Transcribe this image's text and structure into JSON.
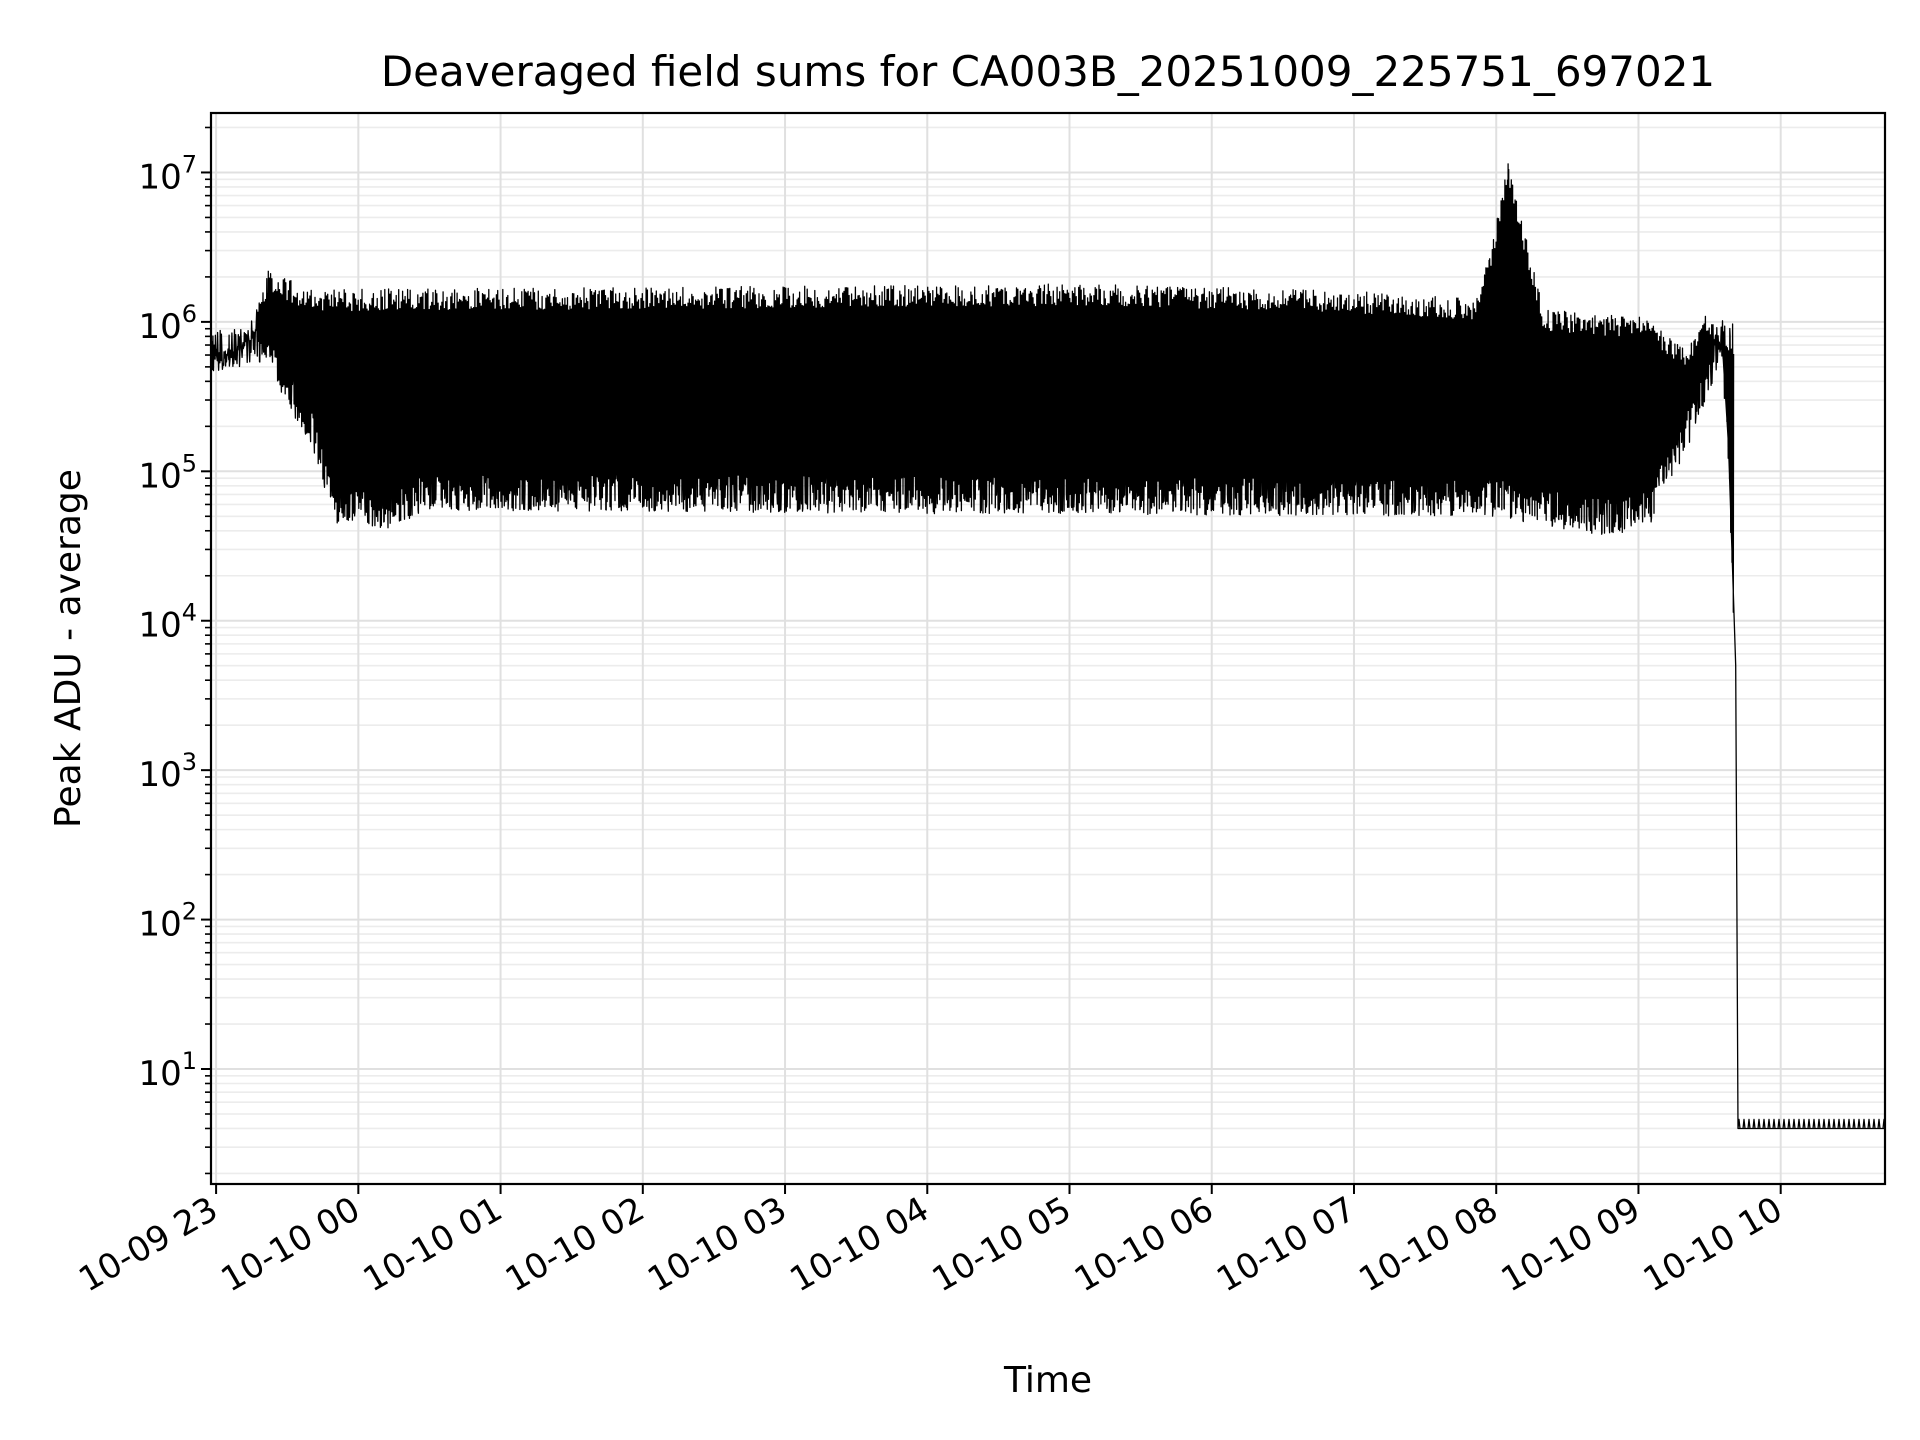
{
  "chart_data": {
    "type": "line",
    "title": "Deaveraged field sums for CA003B_20251009_225751_697021",
    "xlabel": "Time",
    "ylabel": "Peak ADU - average",
    "yscale": "log",
    "ylim": [
      1.7,
      25000000
    ],
    "xlim": [
      "2025-10-09 22:57:51",
      "2025-10-10 10:44:00"
    ],
    "grid": true,
    "x_ticks": [
      {
        "t": "2025-10-09 23:00",
        "label": "10-09 23"
      },
      {
        "t": "2025-10-10 00:00",
        "label": "10-10 00"
      },
      {
        "t": "2025-10-10 01:00",
        "label": "10-10 01"
      },
      {
        "t": "2025-10-10 02:00",
        "label": "10-10 02"
      },
      {
        "t": "2025-10-10 03:00",
        "label": "10-10 03"
      },
      {
        "t": "2025-10-10 04:00",
        "label": "10-10 04"
      },
      {
        "t": "2025-10-10 05:00",
        "label": "10-10 05"
      },
      {
        "t": "2025-10-10 06:00",
        "label": "10-10 06"
      },
      {
        "t": "2025-10-10 07:00",
        "label": "10-10 07"
      },
      {
        "t": "2025-10-10 08:00",
        "label": "10-10 08"
      },
      {
        "t": "2025-10-10 09:00",
        "label": "10-10 09"
      },
      {
        "t": "2025-10-10 10:00",
        "label": "10-10 10"
      }
    ],
    "y_ticks": [
      {
        "value": 10,
        "base": "10",
        "exp": "1"
      },
      {
        "value": 100,
        "base": "10",
        "exp": "2"
      },
      {
        "value": 1000,
        "base": "10",
        "exp": "3"
      },
      {
        "value": 10000,
        "base": "10",
        "exp": "4"
      },
      {
        "value": 100000,
        "base": "10",
        "exp": "5"
      },
      {
        "value": 1000000,
        "base": "10",
        "exp": "6"
      },
      {
        "value": 10000000,
        "base": "10",
        "exp": "7"
      }
    ],
    "series": [
      {
        "color": "#000000",
        "upper_envelope": [
          {
            "t": "2025-10-09 22:57:51",
            "v": 600000
          },
          {
            "t": "2025-10-09 23:08",
            "v": 700000
          },
          {
            "t": "2025-10-09 23:15",
            "v": 1050000
          },
          {
            "t": "2025-10-09 23:22",
            "v": 2200000
          },
          {
            "t": "2025-10-09 23:40",
            "v": 1650000
          },
          {
            "t": "2025-10-10 02:00",
            "v": 1700000
          },
          {
            "t": "2025-10-10 05:10",
            "v": 1800000
          },
          {
            "t": "2025-10-10 07:00",
            "v": 1600000
          },
          {
            "t": "2025-10-10 07:50",
            "v": 1450000
          },
          {
            "t": "2025-10-10 07:57",
            "v": 2600000
          },
          {
            "t": "2025-10-10 08:05",
            "v": 11500000
          },
          {
            "t": "2025-10-10 08:20",
            "v": 1200000
          },
          {
            "t": "2025-10-10 09:00",
            "v": 1100000
          },
          {
            "t": "2025-10-10 09:20",
            "v": 700000
          },
          {
            "t": "2025-10-10 09:29",
            "v": 1150000
          },
          {
            "t": "2025-10-10 09:35",
            "v": 900000
          },
          {
            "t": "2025-10-10 09:38",
            "v": 150000
          },
          {
            "t": "2025-10-10 09:41",
            "v": 5000
          },
          {
            "t": "2025-10-10 09:42",
            "v": 4
          },
          {
            "t": "2025-10-10 10:44",
            "v": 4
          }
        ],
        "lower_envelope": [
          {
            "t": "2025-10-09 22:57:51",
            "v": 500000
          },
          {
            "t": "2025-10-09 23:20",
            "v": 500000
          },
          {
            "t": "2025-10-09 23:40",
            "v": 150000
          },
          {
            "t": "2025-10-09 23:50",
            "v": 45000
          },
          {
            "t": "2025-10-10 00:10",
            "v": 40000
          },
          {
            "t": "2025-10-10 00:30",
            "v": 55000
          },
          {
            "t": "2025-10-10 04:00",
            "v": 52000
          },
          {
            "t": "2025-10-10 07:30",
            "v": 50000
          },
          {
            "t": "2025-10-10 08:00",
            "v": 50000
          },
          {
            "t": "2025-10-10 08:30",
            "v": 40000
          },
          {
            "t": "2025-10-10 08:50",
            "v": 37000
          },
          {
            "t": "2025-10-10 09:05",
            "v": 45000
          },
          {
            "t": "2025-10-10 09:25",
            "v": 200000
          },
          {
            "t": "2025-10-10 09:35",
            "v": 600000
          }
        ]
      }
    ]
  }
}
